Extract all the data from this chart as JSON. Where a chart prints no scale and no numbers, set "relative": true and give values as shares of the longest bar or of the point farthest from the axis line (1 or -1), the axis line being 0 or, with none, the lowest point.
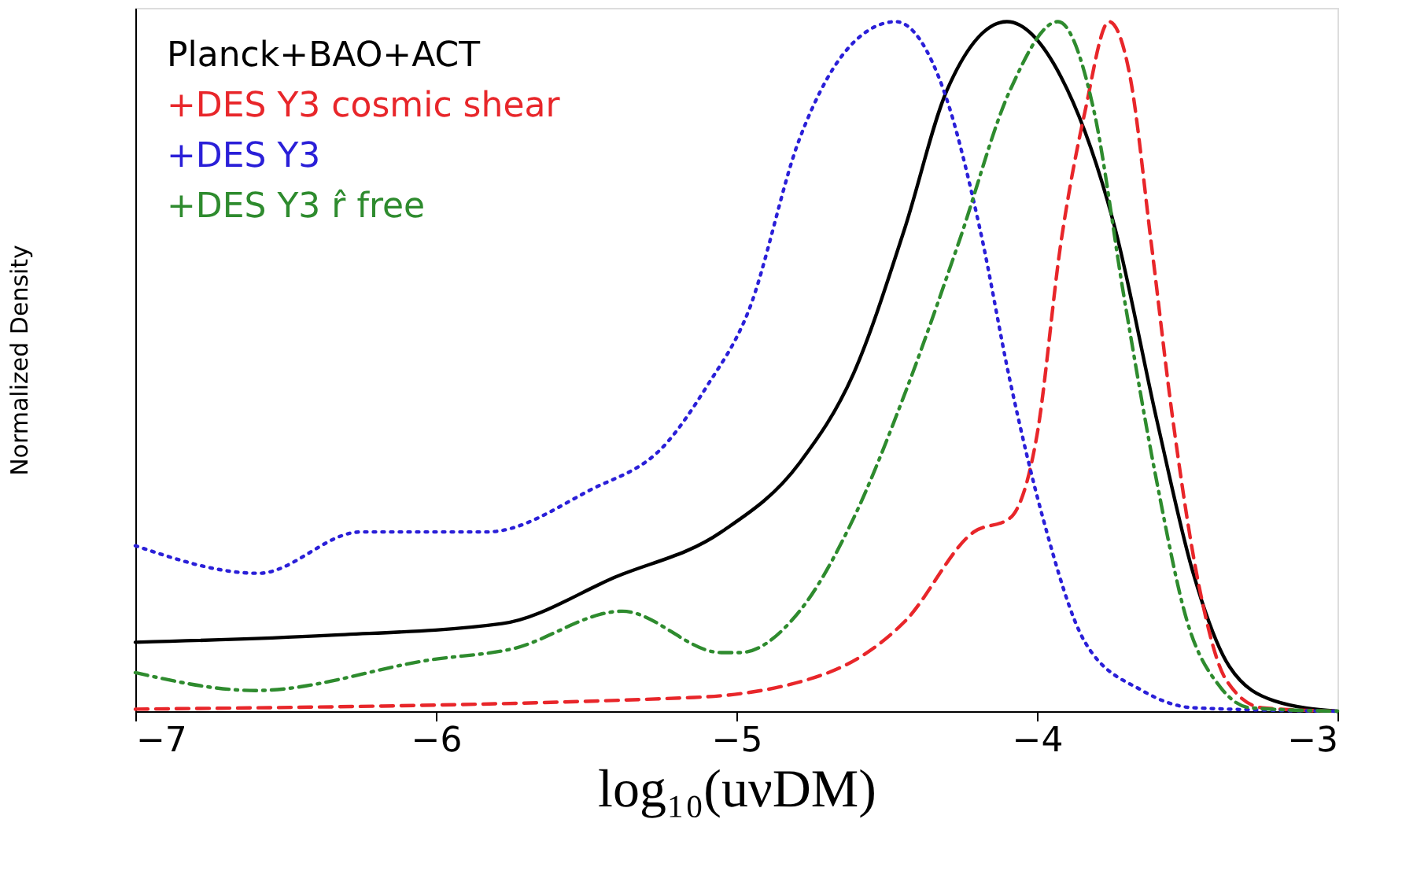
{
  "chart_data": {
    "type": "line",
    "xlabel": "log₁₀(uνDM)",
    "ylabel": "Normalized Density",
    "relative": true,
    "xlim": [
      -7,
      -3
    ],
    "xticks": [
      -7,
      -6,
      -5,
      -4,
      -3
    ],
    "grid": false,
    "legend": "top left",
    "marker": "none",
    "series": [
      {
        "name": "Planck+BAO+ACT",
        "color": "#000000",
        "line_style": "solid",
        "x": [
          -7,
          -6.36,
          -5.78,
          -5.4,
          -5.05,
          -4.79,
          -4.61,
          -4.44,
          -4.3,
          -4.1,
          -3.92,
          -3.74,
          -3.6,
          -3.48,
          -3.36,
          -3.21,
          -3
        ],
        "values": [
          0.1,
          0.11,
          0.127,
          0.195,
          0.26,
          0.36,
          0.49,
          0.7,
          0.9,
          1.0,
          0.92,
          0.7,
          0.42,
          0.2,
          0.065,
          0.015,
          0
        ]
      },
      {
        "name": "+DES Y3 cosmic shear",
        "color": "#e8262a",
        "line_style": "dashed",
        "x": [
          -7,
          -5.14,
          -4.7,
          -4.44,
          -4.21,
          -4.09,
          -4.0,
          -3.92,
          -3.84,
          -3.76,
          -3.69,
          -3.62,
          -3.55,
          -3.46,
          -3.37,
          -3.25,
          -3
        ],
        "values": [
          0.003,
          0.02,
          0.055,
          0.13,
          0.26,
          0.28,
          0.4,
          0.68,
          0.87,
          1.0,
          0.92,
          0.68,
          0.43,
          0.18,
          0.045,
          0.005,
          0
        ]
      },
      {
        "name": "+DES Y3",
        "color": "#2a1fd8",
        "line_style": "dotted",
        "x": [
          -7,
          -6.59,
          -6.25,
          -5.83,
          -5.49,
          -5.23,
          -5.1,
          -4.96,
          -4.79,
          -4.61,
          -4.47,
          -4.31,
          -4.19,
          -4.09,
          -3.98,
          -3.84,
          -3.65,
          -3.48,
          -3
        ],
        "values": [
          0.24,
          0.2,
          0.26,
          0.26,
          0.32,
          0.39,
          0.47,
          0.58,
          0.83,
          0.97,
          1.0,
          0.9,
          0.7,
          0.48,
          0.28,
          0.1,
          0.03,
          0.005,
          0
        ]
      },
      {
        "name": "+DES Y3 r̂ free",
        "color": "#2e8b2e",
        "line_style": "dashdot",
        "x": [
          -7,
          -6.6,
          -6.01,
          -5.75,
          -5.38,
          -5.05,
          -4.99,
          -4.79,
          -4.61,
          -4.44,
          -4.26,
          -4.09,
          -3.93,
          -3.81,
          -3.71,
          -3.6,
          -3.5,
          -3.39,
          -3.29,
          -3
        ],
        "values": [
          0.056,
          0.03,
          0.075,
          0.09,
          0.145,
          0.085,
          0.085,
          0.145,
          0.28,
          0.46,
          0.68,
          0.9,
          1.0,
          0.87,
          0.6,
          0.33,
          0.13,
          0.035,
          0.005,
          0
        ]
      }
    ]
  }
}
